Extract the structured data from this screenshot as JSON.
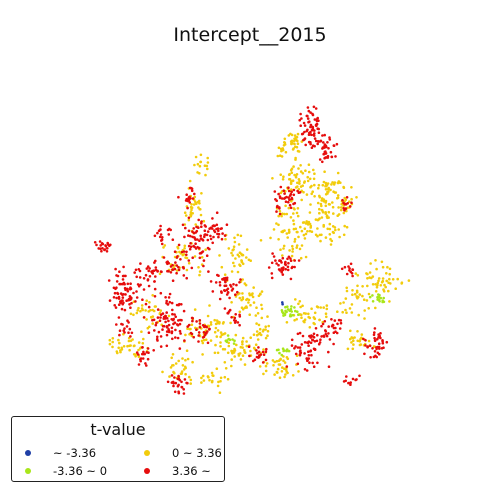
{
  "title": "Intercept__2015",
  "legend": {
    "title": "t-value",
    "entries": [
      {
        "label": "~ -3.36",
        "color": "#1f3fa6"
      },
      {
        "label": "-3.36 ~ 0",
        "color": "#a8e61a"
      },
      {
        "label": "0 ~ 3.36",
        "color": "#f2cc0c"
      },
      {
        "label": "3.36 ~",
        "color": "#e60d0d"
      }
    ]
  },
  "chart_data": {
    "type": "scatter",
    "title": "Intercept__2015",
    "axes_visible": false,
    "legend_title": "t-value",
    "legend_placement": "lower-left",
    "categories": [
      "~ -3.36",
      "-3.36 ~ 0",
      "0 ~ 3.36",
      "3.36 ~"
    ],
    "category_colors": [
      "#1f3fa6",
      "#a8e61a",
      "#f2cc0c",
      "#e60d0d"
    ],
    "approximate_point_counts": [
      2,
      60,
      1000,
      1400
    ]
  }
}
